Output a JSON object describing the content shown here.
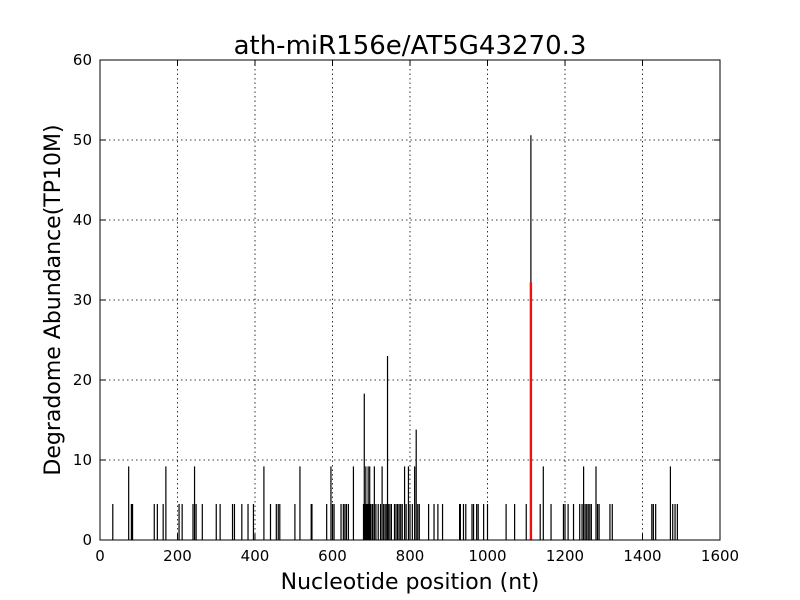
{
  "chart_data": {
    "type": "bar",
    "title": "ath-miR156e/AT5G43270.3",
    "xlabel": "Nucleotide position (nt)",
    "ylabel": "Degradome Abundance(TP10M)",
    "xlim": [
      0,
      1600
    ],
    "ylim": [
      0,
      60
    ],
    "xticks": [
      0,
      200,
      400,
      600,
      800,
      1000,
      1200,
      1400,
      1600
    ],
    "yticks": [
      0,
      10,
      20,
      30,
      40,
      50,
      60
    ],
    "grid": true,
    "series": [
      {
        "color": "#000000",
        "x": [
          33,
          74,
          81,
          84,
          140,
          148,
          163,
          170,
          204,
          212,
          240,
          244,
          248,
          264,
          300,
          310,
          342,
          347,
          366,
          382,
          396,
          423,
          440,
          455,
          460,
          464,
          503,
          516,
          545,
          547,
          585,
          596,
          600,
          604,
          622,
          628,
          632,
          636,
          641,
          654,
          680,
          682,
          684,
          686,
          688,
          690,
          692,
          694,
          696,
          698,
          702,
          704,
          708,
          712,
          718,
          724,
          728,
          732,
          736,
          740,
          742,
          744,
          748,
          752,
          760,
          764,
          768,
          772,
          776,
          780,
          786,
          790,
          796,
          800,
          806,
          812,
          816,
          820,
          824,
          848,
          862,
          872,
          884,
          928,
          930,
          938,
          944,
          960,
          964,
          972,
          976,
          990,
          1000,
          1048,
          1070,
          1100,
          1112,
          1136,
          1144,
          1164,
          1196,
          1200,
          1208,
          1222,
          1238,
          1244,
          1248,
          1252,
          1256,
          1260,
          1264,
          1268,
          1280,
          1284,
          1288,
          1316,
          1322,
          1424,
          1428,
          1434,
          1472,
          1478,
          1484,
          1490
        ],
        "values": [
          4.5,
          9.2,
          4.5,
          4.5,
          4.5,
          4.5,
          4.5,
          9.2,
          4.5,
          4.5,
          4.5,
          9.2,
          4.5,
          4.5,
          4.5,
          4.5,
          4.5,
          4.5,
          4.5,
          4.5,
          4.5,
          9.2,
          4.5,
          4.5,
          4.5,
          4.5,
          4.5,
          9.2,
          4.5,
          4.5,
          4.5,
          9.2,
          4.5,
          4.5,
          4.5,
          4.5,
          4.5,
          4.5,
          4.5,
          9.2,
          4.5,
          18.3,
          4.5,
          9.2,
          4.5,
          4.5,
          9.2,
          4.5,
          9.2,
          4.5,
          4.5,
          4.5,
          9.2,
          4.5,
          4.5,
          4.5,
          9.2,
          4.5,
          4.5,
          4.5,
          23.0,
          4.5,
          4.5,
          4.5,
          4.5,
          4.5,
          4.5,
          4.5,
          4.5,
          4.5,
          9.2,
          4.5,
          9.2,
          4.5,
          4.5,
          9.2,
          13.8,
          4.5,
          4.5,
          4.5,
          4.5,
          4.5,
          4.5,
          4.5,
          4.5,
          4.5,
          4.5,
          4.5,
          4.5,
          4.5,
          4.5,
          4.5,
          4.5,
          4.5,
          4.5,
          4.5,
          50.6,
          4.5,
          9.2,
          4.5,
          4.5,
          4.5,
          4.5,
          4.5,
          4.5,
          4.5,
          9.2,
          4.5,
          4.5,
          4.5,
          4.5,
          4.5,
          9.2,
          4.5,
          4.5,
          4.5,
          4.5,
          4.5,
          4.5,
          4.5,
          9.2,
          4.5,
          4.5,
          4.5
        ]
      },
      {
        "color": "#ee1111",
        "x": [
          1112
        ],
        "values": [
          32.2
        ]
      }
    ]
  }
}
